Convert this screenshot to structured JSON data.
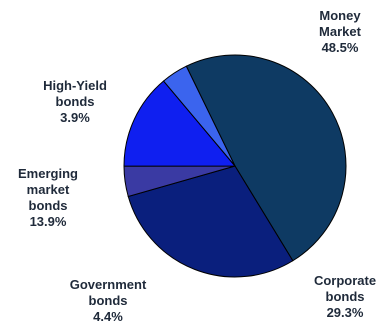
{
  "chart_data": {
    "type": "pie",
    "slices": [
      {
        "name_lines": [
          "Money",
          "Market"
        ],
        "value": 48.5,
        "label": "48.5%",
        "color": "#0e3a63"
      },
      {
        "name_lines": [
          "Corporate",
          "bonds"
        ],
        "value": 29.3,
        "label": "29.3%",
        "color": "#0a1f7d"
      },
      {
        "name_lines": [
          "Government",
          "bonds"
        ],
        "value": 4.4,
        "label": "4.4%",
        "color": "#3a3aa3"
      },
      {
        "name_lines": [
          "Emerging",
          "market",
          "bonds"
        ],
        "value": 13.9,
        "label": "13.9%",
        "color": "#0f1ff0"
      },
      {
        "name_lines": [
          "High-Yield",
          "bonds"
        ],
        "value": 3.9,
        "label": "3.9%",
        "color": "#3b64ee"
      }
    ],
    "start_angle_deg": -26,
    "direction": "clockwise",
    "edge_color": "#000000",
    "label_color": "#1f2a3a"
  }
}
